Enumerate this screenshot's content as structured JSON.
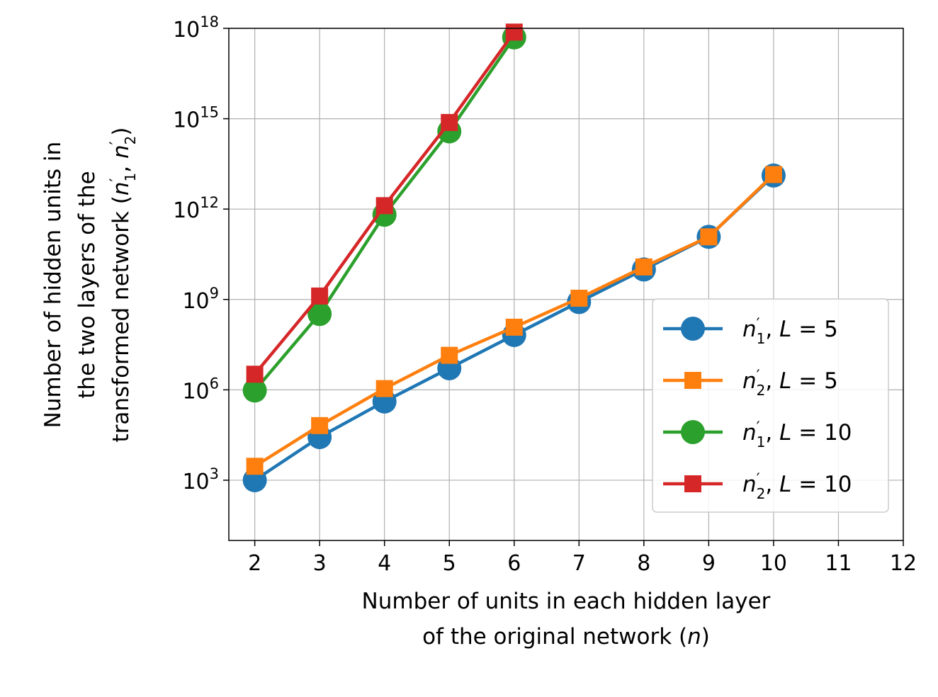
{
  "chart_data": {
    "type": "line",
    "title": "",
    "xlabel": [
      "Number of units in each hidden layer",
      "of the original network (n)"
    ],
    "ylabel": [
      "Number of hidden units in",
      "the two layers of the",
      "transformed network (n′1, n′2)"
    ],
    "x_ticks": [
      "2",
      "3",
      "4",
      "5",
      "6",
      "7",
      "8",
      "9",
      "10",
      "11",
      "12"
    ],
    "xlim": [
      1.6,
      12
    ],
    "y_scale": "log",
    "ylim": [
      10.0,
      1e+18
    ],
    "y_ticks": [
      {
        "value": 1000.0,
        "base": "10",
        "exp": "3"
      },
      {
        "value": 1000000.0,
        "base": "10",
        "exp": "6"
      },
      {
        "value": 1000000000.0,
        "base": "10",
        "exp": "9"
      },
      {
        "value": 1000000000000.0,
        "base": "10",
        "exp": "12"
      },
      {
        "value": 1000000000000000.0,
        "base": "10",
        "exp": "15"
      },
      {
        "value": 1e+18,
        "base": "10",
        "exp": "18"
      }
    ],
    "grid": true,
    "legend_position": "center-right",
    "series": [
      {
        "name": "n′1, L=5",
        "sub": "1",
        "L": "5",
        "color": "#1f77b4",
        "marker": "circle",
        "x": [
          2,
          3,
          4,
          5,
          6,
          7,
          8,
          9,
          10
        ],
        "y": [
          1000.0,
          27000.0,
          410000.0,
          5200000.0,
          66000000.0,
          820000000.0,
          9900000000.0,
          120000000000.0,
          13000000000000.0
        ]
      },
      {
        "name": "n′2, L=5",
        "sub": "2",
        "L": "5",
        "color": "#ff7f0e",
        "marker": "square",
        "x": [
          2,
          3,
          4,
          5,
          6,
          7,
          8,
          9,
          10
        ],
        "y": [
          2900.0,
          65000.0,
          1100000.0,
          14000000.0,
          120000000.0,
          1100000000.0,
          12000000000.0,
          120000000000.0,
          14000000000000.0
        ]
      },
      {
        "name": "n′1, L=10",
        "sub": "1",
        "L": "10",
        "color": "#2ca02c",
        "marker": "circle",
        "x": [
          2,
          3,
          4,
          5,
          6
        ],
        "y": [
          950000.0,
          330000000.0,
          650000000000.0,
          380000000000000.0,
          5e+17
        ]
      },
      {
        "name": "n′2, L=10",
        "sub": "2",
        "L": "10",
        "color": "#d62728",
        "marker": "square",
        "x": [
          2,
          3,
          4,
          5,
          6
        ],
        "y": [
          3300000.0,
          1300000000.0,
          1300000000000.0,
          750000000000000.0,
          7.5e+17
        ]
      }
    ]
  }
}
